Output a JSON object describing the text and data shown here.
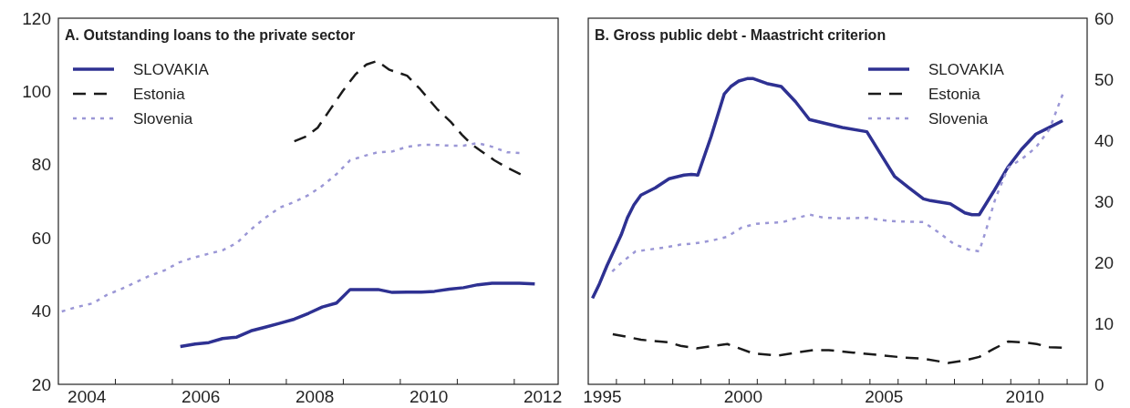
{
  "chart_data": [
    {
      "type": "line",
      "title": "A. Outstanding loans to the private sector",
      "legend": "top left",
      "xlim": [
        2004,
        2012.77
      ],
      "ylim": [
        20,
        120
      ],
      "yticks": [
        20,
        40,
        60,
        80,
        100,
        120
      ],
      "xticks": [
        {
          "value": 2005,
          "label": null
        },
        {
          "value": 2006,
          "label": null
        },
        {
          "value": 2007,
          "label": null
        },
        {
          "value": 2008,
          "label": null
        },
        {
          "value": 2009,
          "label": null
        },
        {
          "value": 2010,
          "label": null
        },
        {
          "value": 2011,
          "label": null
        },
        {
          "value": 2012,
          "label": null
        },
        {
          "value": 2004.5,
          "label": "2004"
        },
        {
          "value": 2006.5,
          "label": "2006"
        },
        {
          "value": 2008.5,
          "label": "2008"
        },
        {
          "value": 2010.5,
          "label": "2010"
        },
        {
          "value": 2012.5,
          "label": "2012"
        }
      ],
      "series": [
        {
          "name": "SLOVAKIA",
          "color": "#2e3192",
          "line_style": "solid",
          "x": [
            2006.14,
            2006.4,
            2006.64,
            2006.88,
            2007.13,
            2007.38,
            2007.63,
            2007.89,
            2008.14,
            2008.39,
            2008.63,
            2008.88,
            2009.12,
            2009.37,
            2009.61,
            2009.86,
            2010.12,
            2010.37,
            2010.6,
            2010.86,
            2011.11,
            2011.36,
            2011.61,
            2011.87,
            2012.09,
            2012.36
          ],
          "values": [
            30.3,
            31,
            31.4,
            32.5,
            32.9,
            34.6,
            35.6,
            36.7,
            37.8,
            39.4,
            41.1,
            42.2,
            45.9,
            45.9,
            45.9,
            45.1,
            45.2,
            45.2,
            45.4,
            46,
            46.4,
            47.2,
            47.6,
            47.6,
            47.6,
            47.4
          ]
        },
        {
          "name": "Estonia",
          "color": "#1a1a1a",
          "line_style": "dashed",
          "x": [
            2008.14,
            2008.35,
            2008.55,
            2008.77,
            2008.99,
            2009.21,
            2009.4,
            2009.59,
            2009.81,
            2010.12,
            2010.35,
            2010.64,
            2010.89,
            2011.08,
            2011.24,
            2011.42,
            2011.65,
            2011.87,
            2012.11
          ],
          "values": [
            86.4,
            87.7,
            90.1,
            95.1,
            100.1,
            104.6,
            107.3,
            108.3,
            105.9,
            104.3,
            100.6,
            95.3,
            91.6,
            88.2,
            85.7,
            83.7,
            81.2,
            79.2,
            77.4
          ]
        },
        {
          "name": "Slovenia",
          "color": "#9b97d6",
          "line_style": "dotted",
          "x": [
            2004.06,
            2004.32,
            2004.6,
            2004.85,
            2005.11,
            2005.36,
            2005.61,
            2005.86,
            2006.12,
            2006.37,
            2006.62,
            2006.88,
            2007.13,
            2007.38,
            2007.63,
            2007.89,
            2008.14,
            2008.39,
            2008.63,
            2008.88,
            2009.12,
            2009.37,
            2009.61,
            2009.86,
            2010.12,
            2010.37,
            2010.6,
            2010.86,
            2011.11,
            2011.36,
            2011.61,
            2011.87,
            2012.09
          ],
          "values": [
            39.9,
            41.1,
            42.1,
            44.4,
            46.1,
            47.9,
            49.7,
            51.1,
            53.3,
            54.6,
            55.6,
            56.6,
            58.6,
            62.3,
            65.5,
            68.3,
            69.8,
            71.7,
            74.2,
            77.4,
            81.2,
            82.4,
            83.4,
            83.6,
            84.9,
            85.4,
            85.4,
            85.2,
            85.2,
            85.9,
            84.9,
            83.4,
            83.2
          ]
        }
      ]
    },
    {
      "type": "line",
      "title": "B. Gross public debt - Maastricht criterion",
      "legend": "top right",
      "xlim": [
        1995,
        2012.71
      ],
      "y2lim": [
        0,
        60
      ],
      "y2ticks": [
        0,
        10,
        20,
        30,
        40,
        50,
        60
      ],
      "xticks": [
        {
          "value": 1996,
          "label": null
        },
        {
          "value": 1997,
          "label": null
        },
        {
          "value": 1998,
          "label": null
        },
        {
          "value": 1999,
          "label": null
        },
        {
          "value": 2000,
          "label": null
        },
        {
          "value": 2001,
          "label": null
        },
        {
          "value": 2002,
          "label": null
        },
        {
          "value": 2003,
          "label": null
        },
        {
          "value": 2004,
          "label": null
        },
        {
          "value": 2005,
          "label": null
        },
        {
          "value": 2006,
          "label": null
        },
        {
          "value": 2007,
          "label": null
        },
        {
          "value": 2008,
          "label": null
        },
        {
          "value": 2009,
          "label": null
        },
        {
          "value": 2010,
          "label": null
        },
        {
          "value": 2011,
          "label": null
        },
        {
          "value": 2012,
          "label": null
        },
        {
          "value": 1995.5,
          "label": "1995"
        },
        {
          "value": 2000.5,
          "label": "2000"
        },
        {
          "value": 2005.5,
          "label": "2005"
        },
        {
          "value": 2010.5,
          "label": "2010"
        }
      ],
      "series": [
        {
          "name": "SLOVAKIA",
          "color": "#2e3192",
          "line_style": "solid",
          "axis": "y2",
          "x": [
            1995.15,
            1995.4,
            1995.66,
            1995.91,
            1996.17,
            1996.39,
            1996.62,
            1996.87,
            1997.38,
            1997.87,
            1998.4,
            1998.66,
            1998.89,
            1999.36,
            1999.83,
            2000.06,
            2000.34,
            2000.64,
            2000.86,
            2001.34,
            2001.85,
            2002.36,
            2002.85,
            2003.38,
            2004.02,
            2004.89,
            2005.4,
            2005.87,
            2006.39,
            2006.9,
            2007.15,
            2007.85,
            2008.37,
            2008.62,
            2008.88,
            2009.39,
            2009.9,
            2010.38,
            2010.89,
            2011.37,
            2011.84
          ],
          "values": [
            14.1,
            16.5,
            19.4,
            21.9,
            24.5,
            27.3,
            29.4,
            31,
            32.2,
            33.7,
            34.3,
            34.4,
            34.3,
            40.6,
            47.6,
            48.8,
            49.7,
            50.1,
            50.1,
            49.3,
            48.8,
            46.3,
            43.4,
            42.8,
            42.1,
            41.4,
            37.6,
            34.1,
            32.2,
            30.4,
            30.1,
            29.6,
            28.1,
            27.8,
            27.8,
            31.6,
            35.6,
            38.5,
            41,
            42.1,
            43.2
          ]
        },
        {
          "name": "Estonia",
          "color": "#1a1a1a",
          "line_style": "dashed",
          "axis": "y2",
          "x": [
            1995.87,
            1996.36,
            1996.87,
            1997.83,
            1998.28,
            1998.85,
            1999.94,
            2000.83,
            2001.72,
            2002.24,
            2003,
            2003.54,
            2004.41,
            2005.3,
            2006.19,
            2006.9,
            2007.79,
            2008.37,
            2008.88,
            2009.39,
            2009.9,
            2010.41,
            2010.92,
            2011.37,
            2011.81
          ],
          "values": [
            8.2,
            7.8,
            7.3,
            6.9,
            6.3,
            5.9,
            6.6,
            5.1,
            4.7,
            5.1,
            5.6,
            5.6,
            5.2,
            4.8,
            4.4,
            4.2,
            3.5,
            3.9,
            4.5,
            5.8,
            7,
            6.9,
            6.6,
            6.1,
            6
          ]
        },
        {
          "name": "Slovenia",
          "color": "#9b97d6",
          "line_style": "dotted",
          "axis": "y2",
          "x": [
            1995.85,
            1996.17,
            1996.68,
            1997.19,
            1997.7,
            1998.28,
            1998.79,
            1999.43,
            1999.94,
            2000.45,
            2000.96,
            2001.92,
            2002.43,
            2002.87,
            2003.38,
            2004.02,
            2004.92,
            2005.43,
            2005.94,
            2006.9,
            2007.47,
            2007.98,
            2008.49,
            2008.88,
            2009.13,
            2009.45,
            2009.9,
            2010.41,
            2010.89,
            2011.37,
            2011.84
          ],
          "values": [
            18.5,
            19.9,
            21.8,
            22.1,
            22.4,
            22.9,
            23.1,
            23.6,
            24.2,
            25.7,
            26.3,
            26.6,
            27.3,
            27.8,
            27.3,
            27.2,
            27.3,
            26.9,
            26.7,
            26.6,
            24.8,
            23,
            22.1,
            21.8,
            25.4,
            30.4,
            35.5,
            37,
            38.8,
            41.8,
            47.5
          ]
        }
      ]
    }
  ]
}
